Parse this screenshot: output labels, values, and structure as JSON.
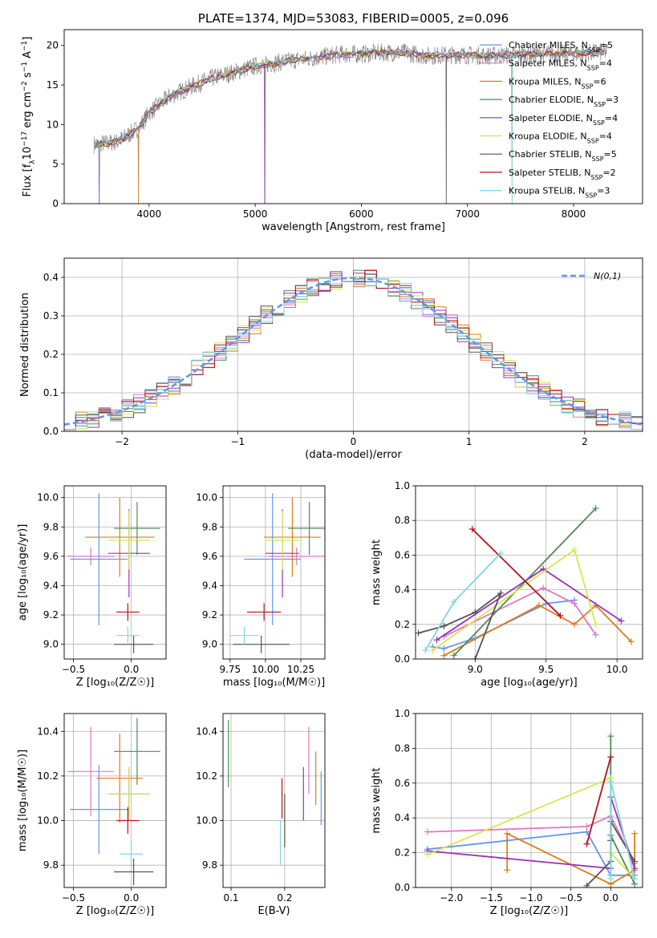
{
  "chart_data": [
    {
      "id": "spectrum",
      "type": "line",
      "title": "PLATE=1374, MJD=53083, FIBERID=0005, z=0.096",
      "xlabel": "wavelength [Angstrom, rest frame]",
      "ylabel": "Flux [f_λ10^-17 erg cm^-2 s^-1 A^-1]",
      "xlim": [
        3200,
        8650
      ],
      "ylim": [
        0,
        22
      ],
      "xticks": [
        4000,
        5000,
        6000,
        7000,
        8000
      ],
      "yticks": [
        0,
        5,
        10,
        15,
        20
      ],
      "data_color": "#808080",
      "legend_position": "upper right",
      "legend": [
        {
          "label": "Chabrier MILES, N_SSP=5",
          "color": "#6495ed"
        },
        {
          "label": "Salpeter MILES, N_SSP=4",
          "color": "#e377c2"
        },
        {
          "label": "Kroupa MILES, N_SSP=6",
          "color": "#e07b1a"
        },
        {
          "label": "Chabrier ELODIE, N_SSP=3",
          "color": "#4e8a5a"
        },
        {
          "label": "Salpeter ELODIE, N_SSP=4",
          "color": "#9b30b8"
        },
        {
          "label": "Kroupa ELODIE, N_SSP=4",
          "color": "#d4e84a"
        },
        {
          "label": "Chabrier STELIB, N_SSP=5",
          "color": "#555555"
        },
        {
          "label": "Salpeter STELIB, N_SSP=2",
          "color": "#b5121b"
        },
        {
          "label": "Kroupa STELIB, N_SSP=3",
          "color": "#7fd8e0"
        }
      ],
      "continuum": {
        "x": [
          3500,
          3700,
          3900,
          4000,
          4200,
          4400,
          4600,
          4800,
          5000,
          5200,
          5400,
          5600,
          5800,
          6000,
          6200,
          6400,
          6600,
          6800,
          7000,
          7200,
          7400,
          7600,
          7800,
          8000,
          8300
        ],
        "y": [
          7.5,
          7.8,
          9.5,
          11.5,
          13.6,
          14.8,
          15.9,
          16.6,
          17.4,
          17.8,
          18.2,
          18.5,
          18.9,
          18.9,
          19.1,
          19.1,
          18.7,
          18.8,
          18.8,
          18.7,
          18.8,
          18.9,
          19.0,
          18.9,
          19.2
        ]
      },
      "absorption_lines": [
        3530,
        3900,
        5090,
        6800,
        7420
      ]
    },
    {
      "id": "residuals",
      "type": "step",
      "xlabel": "(data-model)/error",
      "ylabel": "Normed distribution",
      "xlim": [
        -2.5,
        2.5
      ],
      "ylim": [
        0,
        0.45
      ],
      "xticks": [
        -2,
        -1,
        0,
        1,
        2
      ],
      "yticks": [
        0.0,
        0.1,
        0.2,
        0.3,
        0.4
      ],
      "legend_position": "upper right",
      "legend": [
        {
          "label": "N(0,1)",
          "color": "#6495ed"
        }
      ],
      "gaussian": {
        "mean": 0,
        "sigma": 1
      },
      "bin_width": 0.1
    },
    {
      "id": "age-vs-Z",
      "type": "errorbar",
      "xlabel": "Z [log10(Z/Z☉)]",
      "ylabel": "age  [log10(age/yr)]",
      "xlim": [
        -0.58,
        0.3
      ],
      "ylim": [
        8.9,
        10.08
      ],
      "xticks": [
        -0.5,
        0.0
      ],
      "yticks": [
        9.0,
        9.2,
        9.4,
        9.6,
        9.8,
        10.0
      ],
      "points": [
        {
          "color": "#6495ed",
          "x": -0.28,
          "xerr": 0.25,
          "y": 9.58,
          "yerr": 0.45
        },
        {
          "color": "#e377c2",
          "x": -0.35,
          "xerr": 0.2,
          "y": 9.6,
          "yerr": 0.0
        },
        {
          "color": "#e07b1a",
          "x": -0.1,
          "xerr": 0.3,
          "y": 9.73,
          "yerr": 0.27
        },
        {
          "color": "#4e8a5a",
          "x": 0.05,
          "xerr": 0.2,
          "y": 9.79,
          "yerr": 0.18
        },
        {
          "color": "#9b30b8",
          "x": -0.02,
          "xerr": 0.18,
          "y": 9.62,
          "yerr": 0.3
        },
        {
          "color": "#d4e84a",
          "x": -0.02,
          "xerr": 0.18,
          "y": 9.71,
          "yerr": 0.2
        },
        {
          "color": "#555555",
          "x": 0.02,
          "xerr": 0.17,
          "y": 9.0,
          "yerr": 0.0
        },
        {
          "color": "#b5121b",
          "x": -0.03,
          "xerr": 0.1,
          "y": 9.22,
          "yerr": 0.0
        },
        {
          "color": "#7fd8e0",
          "x": -0.03,
          "xerr": 0.1,
          "y": 9.06,
          "yerr": 0.0
        }
      ]
    },
    {
      "id": "age-vs-mass",
      "type": "errorbar",
      "xlabel": "mass [log10(M/M☉)]",
      "xlim": [
        9.7,
        10.42
      ],
      "ylim": [
        8.9,
        10.08
      ],
      "xticks": [
        9.75,
        10.0,
        10.25
      ],
      "yticks": [
        9.0,
        9.2,
        9.4,
        9.6,
        9.8,
        10.0
      ],
      "points": [
        {
          "color": "#6495ed",
          "x": 10.05,
          "xerr": 0.2,
          "y": 9.58,
          "yerr": 0.45
        },
        {
          "color": "#e377c2",
          "x": 10.22,
          "xerr": 0.2,
          "y": 9.6,
          "yerr": 0.0
        },
        {
          "color": "#e07b1a",
          "x": 10.19,
          "xerr": 0.2,
          "y": 9.73,
          "yerr": 0.27
        },
        {
          "color": "#4e8a5a",
          "x": 10.31,
          "xerr": 0.15,
          "y": 9.79,
          "yerr": 0.18
        },
        {
          "color": "#9b30b8",
          "x": 10.12,
          "xerr": 0.12,
          "y": 9.62,
          "yerr": 0.3
        },
        {
          "color": "#d4e84a",
          "x": 10.12,
          "xerr": 0.12,
          "y": 9.71,
          "yerr": 0.2
        },
        {
          "color": "#555555",
          "x": 9.97,
          "xerr": 0.2,
          "y": 9.0,
          "yerr": 0.0
        },
        {
          "color": "#b5121b",
          "x": 9.99,
          "xerr": 0.12,
          "y": 9.22,
          "yerr": 0.0
        },
        {
          "color": "#7fd8e0",
          "x": 9.85,
          "xerr": 0.1,
          "y": 9.06,
          "yerr": 0.0
        }
      ]
    },
    {
      "id": "weight-vs-age",
      "type": "line",
      "xlabel": "age  [log10(age/yr)]",
      "ylabel": "mass weight",
      "xlim": [
        8.58,
        10.18
      ],
      "ylim": [
        0,
        1.0
      ],
      "xticks": [
        9.0,
        9.5,
        10.0
      ],
      "yticks": [
        0.0,
        0.2,
        0.4,
        0.6,
        0.8,
        1.0
      ],
      "series": [
        {
          "color": "#6495ed",
          "x": [
            8.7,
            8.78,
            9.0,
            9.5,
            9.7
          ],
          "y": [
            0.07,
            0.06,
            0.12,
            0.32,
            0.34
          ]
        },
        {
          "color": "#e377c2",
          "x": [
            8.78,
            9.48,
            9.7,
            9.85
          ],
          "y": [
            0.13,
            0.41,
            0.32,
            0.14
          ]
        },
        {
          "color": "#e07b1a",
          "x": [
            8.78,
            9.45,
            9.7,
            9.85,
            10.1
          ],
          "y": [
            0.02,
            0.31,
            0.2,
            0.31,
            0.1
          ]
        },
        {
          "color": "#4e8a5a",
          "x": [
            8.85,
            9.85
          ],
          "y": [
            0.02,
            0.87
          ]
        },
        {
          "color": "#9b30b8",
          "x": [
            8.73,
            9.48,
            10.03
          ],
          "y": [
            0.11,
            0.52,
            0.22
          ]
        },
        {
          "color": "#d4e84a",
          "x": [
            8.7,
            9.7,
            9.85
          ],
          "y": [
            0.05,
            0.63,
            0.2
          ]
        },
        {
          "color": "#555555",
          "x": [
            8.6,
            8.78,
            9.0,
            9.18,
            9.0
          ],
          "y": [
            0.15,
            0.19,
            0.27,
            0.38,
            0.0
          ]
        },
        {
          "color": "#b5121b",
          "x": [
            8.98,
            9.6
          ],
          "y": [
            0.75,
            0.25
          ]
        },
        {
          "color": "#7fd8e0",
          "x": [
            8.65,
            8.85,
            9.18
          ],
          "y": [
            0.05,
            0.33,
            0.61
          ]
        }
      ]
    },
    {
      "id": "mass-vs-Z",
      "type": "errorbar",
      "xlabel": "Z [log10(Z/Z☉)]",
      "ylabel": "mass [log10(M/M☉)]",
      "xlim": [
        -0.58,
        0.3
      ],
      "ylim": [
        9.7,
        10.48
      ],
      "xticks": [
        -0.5,
        0.0
      ],
      "yticks": [
        9.8,
        10.0,
        10.2,
        10.4
      ],
      "points": [
        {
          "color": "#6495ed",
          "x": -0.28,
          "xerr": 0.25,
          "y": 10.05,
          "yerr": 0.2
        },
        {
          "color": "#e377c2",
          "x": -0.35,
          "xerr": 0.2,
          "y": 10.22,
          "yerr": 0.2
        },
        {
          "color": "#e07b1a",
          "x": -0.1,
          "xerr": 0.2,
          "y": 10.19,
          "yerr": 0.2
        },
        {
          "color": "#4e8a5a",
          "x": 0.05,
          "xerr": 0.2,
          "y": 10.31,
          "yerr": 0.15
        },
        {
          "color": "#9b30b8",
          "x": -0.02,
          "xerr": 0.18,
          "y": 10.12,
          "yerr": 0.12
        },
        {
          "color": "#d4e84a",
          "x": -0.02,
          "xerr": 0.18,
          "y": 10.12,
          "yerr": 0.12
        },
        {
          "color": "#555555",
          "x": 0.02,
          "xerr": 0.17,
          "y": 9.77,
          "yerr": 0.0
        },
        {
          "color": "#b5121b",
          "x": -0.03,
          "xerr": 0.1,
          "y": 10.0,
          "yerr": 0.0
        },
        {
          "color": "#7fd8e0",
          "x": 0.0,
          "xerr": 0.1,
          "y": 9.85,
          "yerr": 0.0
        }
      ]
    },
    {
      "id": "mass-vs-EBV",
      "type": "errorbar",
      "xlabel": "E(B-V)",
      "xlim": [
        0.085,
        0.275
      ],
      "ylim": [
        9.7,
        10.48
      ],
      "xticks": [
        0.1,
        0.2
      ],
      "yticks": [
        9.8,
        10.0,
        10.2,
        10.4
      ],
      "points": [
        {
          "color": "#6495ed",
          "x": 0.268,
          "y": 10.1,
          "yerr": 0.12
        },
        {
          "color": "#e377c2",
          "x": 0.245,
          "y": 10.27,
          "yerr": 0.15
        },
        {
          "color": "#e07b1a",
          "x": 0.258,
          "y": 10.19,
          "yerr": 0.12
        },
        {
          "color": "#4e8a5a",
          "x": 0.095,
          "y": 10.3,
          "yerr": 0.15
        },
        {
          "color": "#9b30b8",
          "x": 0.235,
          "y": 10.12,
          "yerr": 0.12
        },
        {
          "color": "#d4e84a",
          "x": 0.2,
          "y": 10.0,
          "yerr": 0.1
        },
        {
          "color": "#555555",
          "x": 0.2,
          "y": 10.0,
          "yerr": 0.12
        },
        {
          "color": "#b5121b",
          "x": 0.195,
          "y": 10.1,
          "yerr": 0.09
        },
        {
          "color": "#7fd8e0",
          "x": 0.192,
          "y": 9.9,
          "yerr": 0.1
        }
      ]
    },
    {
      "id": "weight-vs-Z",
      "type": "line",
      "xlabel": "Z [log10(Z/Z☉)]",
      "ylabel": "mass weight",
      "xlim": [
        -2.45,
        0.4
      ],
      "ylim": [
        0,
        1.0
      ],
      "xticks": [
        -2.0,
        -1.5,
        -1.0,
        -0.5,
        0.0
      ],
      "yticks": [
        0.0,
        0.2,
        0.4,
        0.6,
        0.8,
        1.0
      ],
      "series": [
        {
          "color": "#6495ed",
          "x": [
            -2.3,
            -0.3,
            0.0,
            0.3
          ],
          "y": [
            0.22,
            0.32,
            0.07,
            0.07
          ]
        },
        {
          "color": "#e377c2",
          "x": [
            -2.3,
            -0.3,
            0.0,
            0.3
          ],
          "y": [
            0.32,
            0.35,
            0.41,
            0.14
          ]
        },
        {
          "color": "#e07b1a",
          "x": [
            -1.3,
            -1.3,
            0.0,
            0.3,
            0.3
          ],
          "y": [
            0.1,
            0.31,
            0.02,
            0.1,
            0.31
          ]
        },
        {
          "color": "#4e8a5a",
          "x": [
            0.0,
            0.0,
            0.3
          ],
          "y": [
            0.87,
            0.3,
            0.02
          ]
        },
        {
          "color": "#9b30b8",
          "x": [
            -2.3,
            0.0,
            0.0,
            0.3
          ],
          "y": [
            0.21,
            0.11,
            0.52,
            0.11
          ]
        },
        {
          "color": "#d4e84a",
          "x": [
            -2.3,
            0.0,
            0.0,
            0.3
          ],
          "y": [
            0.19,
            0.63,
            0.2,
            0.05
          ]
        },
        {
          "color": "#555555",
          "x": [
            -0.3,
            0.0,
            0.0,
            0.0,
            0.3
          ],
          "y": [
            0.01,
            0.15,
            0.27,
            0.38,
            0.15
          ]
        },
        {
          "color": "#b5121b",
          "x": [
            -0.3,
            0.0
          ],
          "y": [
            0.25,
            0.75
          ]
        },
        {
          "color": "#7fd8e0",
          "x": [
            0.0,
            0.0,
            0.3
          ],
          "y": [
            0.05,
            0.61,
            0.05
          ]
        }
      ]
    }
  ]
}
